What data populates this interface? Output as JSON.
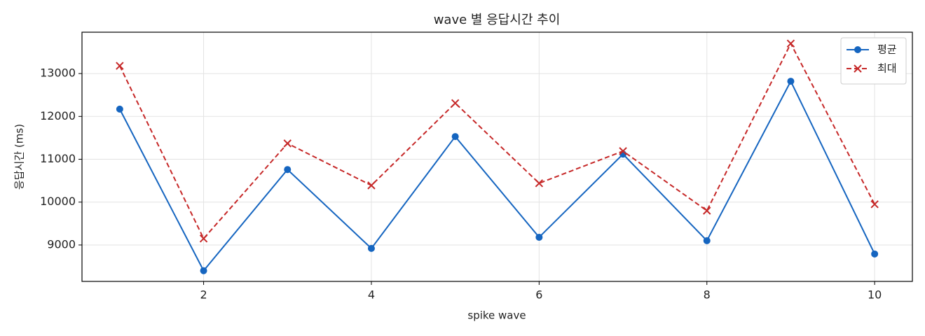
{
  "chart_data": {
    "type": "line",
    "title": "wave 별 응답시간 추이",
    "xlabel": "spike wave",
    "ylabel": "응답시간 (ms)",
    "x": [
      1,
      2,
      3,
      4,
      5,
      6,
      7,
      8,
      9,
      10
    ],
    "series": [
      {
        "name": "평균",
        "color": "#1565c0",
        "marker": "o",
        "linestyle": "solid",
        "values": [
          12170,
          8400,
          10760,
          8920,
          11530,
          9180,
          11120,
          9100,
          12820,
          8790
        ]
      },
      {
        "name": "최대",
        "color": "#c62828",
        "marker": "x",
        "linestyle": "dashed",
        "values": [
          13180,
          9150,
          11370,
          10390,
          12310,
          10440,
          11190,
          9800,
          13700,
          9950
        ]
      }
    ],
    "xlim": [
      0.55,
      10.45
    ],
    "xticks": [
      2,
      4,
      6,
      8,
      10
    ],
    "ylim": [
      8150,
      13965
    ],
    "yticks": [
      9000,
      10000,
      11000,
      12000,
      13000
    ],
    "grid": true,
    "legend": "upper right"
  }
}
